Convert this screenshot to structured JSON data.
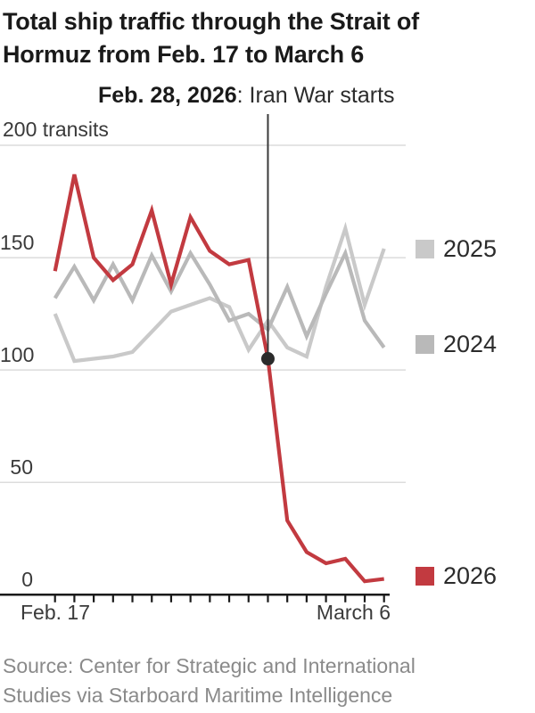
{
  "title": {
    "line1": "Total ship traffic through the Strait of",
    "line2": "Hormuz from Feb. 17 to March 6"
  },
  "annotation": {
    "bold": "Feb. 28, 2026",
    "rest": ": Iran War starts"
  },
  "axes": {
    "y_labels": [
      "200 transits",
      "150",
      "100",
      "50",
      "0"
    ],
    "x_labels": [
      "Feb. 17",
      "March 6"
    ]
  },
  "legend": [
    {
      "label": "2025",
      "color": "#c9c9c9"
    },
    {
      "label": "2024",
      "color": "#b9b9b9"
    },
    {
      "label": "2026",
      "color": "#c23a40"
    }
  ],
  "source": {
    "line1": "Source: Center for Strategic and International",
    "line2": "Studies via Starboard Maritime Intelligence"
  },
  "chart_data": {
    "type": "line",
    "title": "Total ship traffic through the Strait of Hormuz from Feb. 17 to March 6",
    "ylabel": "transits",
    "ylim": [
      0,
      200
    ],
    "yticks": [
      0,
      50,
      100,
      150,
      200
    ],
    "x_range": [
      "Feb. 17",
      "March 6"
    ],
    "categories": [
      "Feb. 17",
      "Feb. 18",
      "Feb. 19",
      "Feb. 20",
      "Feb. 21",
      "Feb. 22",
      "Feb. 23",
      "Feb. 24",
      "Feb. 25",
      "Feb. 26",
      "Feb. 27",
      "Feb. 28",
      "March 1",
      "March 2",
      "March 3",
      "March 4",
      "March 5",
      "March 6"
    ],
    "series": [
      {
        "name": "2025",
        "color": "#c9c9c9",
        "values": [
          125,
          104,
          105,
          106,
          108,
          117,
          126,
          129,
          132,
          128,
          109,
          122,
          110,
          106,
          137,
          163,
          129,
          154
        ]
      },
      {
        "name": "2024",
        "color": "#b9b9b9",
        "values": [
          132,
          146,
          131,
          147,
          131,
          151,
          135,
          152,
          138,
          122,
          125,
          118,
          137,
          115,
          134,
          152,
          122,
          110
        ]
      },
      {
        "name": "2026",
        "color": "#c23a40",
        "values": [
          144,
          187,
          150,
          140,
          147,
          171,
          138,
          168,
          153,
          147,
          149,
          105,
          33,
          19,
          14,
          16,
          6,
          7
        ]
      }
    ],
    "annotation": {
      "label_bold": "Feb. 28, 2026",
      "label_text": "Iran War starts",
      "series": "2026",
      "index": 11,
      "value": 105
    },
    "legend_position": "right",
    "grid": "horizontal"
  }
}
